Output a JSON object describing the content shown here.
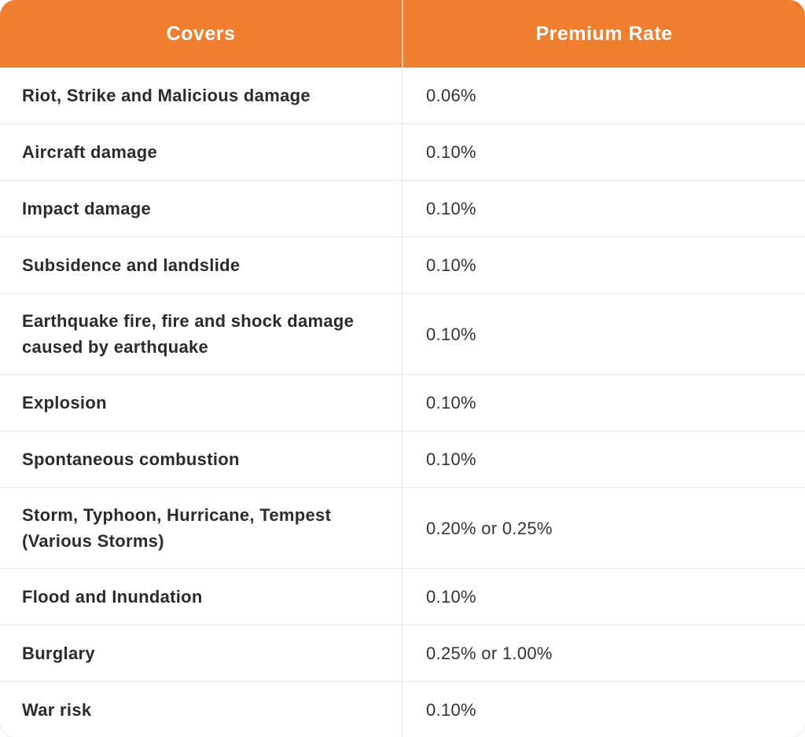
{
  "colors": {
    "header_bg": "#EF7E2E",
    "header_text": "#FFFFFF",
    "cover_text": "#2B2B2B",
    "rate_text": "#333333",
    "row_bg": "#FFFFFF",
    "divider": "#E5E5E5"
  },
  "chart_data": {
    "type": "table",
    "title": "",
    "columns": [
      "Covers",
      "Premium Rate"
    ],
    "rows": [
      {
        "cover": "Riot, Strike and Malicious damage",
        "rate": "0.06%"
      },
      {
        "cover": "Aircraft damage",
        "rate": "0.10%"
      },
      {
        "cover": "Impact damage",
        "rate": "0.10%"
      },
      {
        "cover": "Subsidence and landslide",
        "rate": "0.10%"
      },
      {
        "cover": "Earthquake fire, fire and shock damage caused by earthquake",
        "rate": "0.10%"
      },
      {
        "cover": "Explosion",
        "rate": "0.10%"
      },
      {
        "cover": "Spontaneous combustion",
        "rate": "0.10%"
      },
      {
        "cover": "Storm, Typhoon, Hurricane, Tempest (Various Storms)",
        "rate": "0.20% or 0.25%"
      },
      {
        "cover": "Flood and Inundation",
        "rate": "0.10%"
      },
      {
        "cover": "Burglary",
        "rate": "0.25%  or 1.00%"
      },
      {
        "cover": "War risk",
        "rate": "0.10%"
      }
    ]
  }
}
